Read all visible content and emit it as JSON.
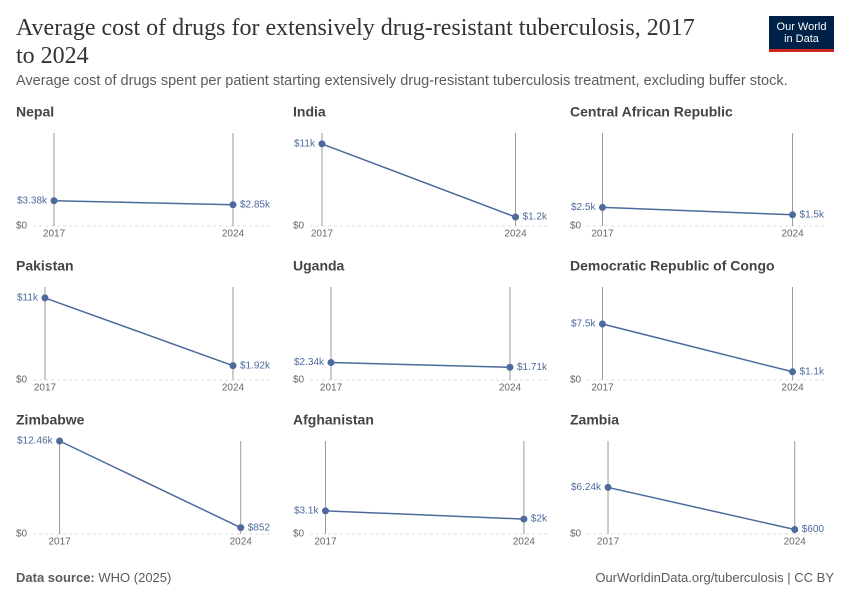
{
  "header": {
    "title": "Average cost of drugs for extensively drug-resistant tuberculosis, 2017 to 2024",
    "subtitle": "Average cost of drugs spent per patient starting extensively drug-resistant tuberculosis treatment, excluding buffer stock.",
    "logo": [
      "Our World",
      "in Data"
    ]
  },
  "chart_data": [
    {
      "type": "slope",
      "title": "Nepal",
      "x": [
        2017,
        2024
      ],
      "values": [
        3380,
        2850
      ],
      "value_labels": [
        "$3.38k",
        "$2.85k"
      ],
      "ylim": [
        0,
        12460
      ],
      "yticks": [
        {
          "value": 0,
          "label": "$0"
        }
      ],
      "color": "#4c6a9c"
    },
    {
      "type": "slope",
      "title": "India",
      "x": [
        2017,
        2024
      ],
      "values": [
        11000,
        1200
      ],
      "value_labels": [
        "$11k",
        "$1.2k"
      ],
      "ylim": [
        0,
        12460
      ],
      "yticks": [
        {
          "value": 0,
          "label": "$0"
        }
      ],
      "color": "#4c6a9c"
    },
    {
      "type": "slope",
      "title": "Central African Republic",
      "x": [
        2017,
        2024
      ],
      "values": [
        2500,
        1500
      ],
      "value_labels": [
        "$2.5k",
        "$1.5k"
      ],
      "ylim": [
        0,
        12460
      ],
      "yticks": [
        {
          "value": 0,
          "label": "$0"
        }
      ],
      "color": "#4c6a9c"
    },
    {
      "type": "slope",
      "title": "Pakistan",
      "x": [
        2017,
        2024
      ],
      "values": [
        11000,
        1920
      ],
      "value_labels": [
        "$11k",
        "$1.92k"
      ],
      "ylim": [
        0,
        12460
      ],
      "yticks": [
        {
          "value": 0,
          "label": "$0"
        }
      ],
      "color": "#4c6a9c"
    },
    {
      "type": "slope",
      "title": "Uganda",
      "x": [
        2017,
        2024
      ],
      "values": [
        2340,
        1710
      ],
      "value_labels": [
        "$2.34k",
        "$1.71k"
      ],
      "ylim": [
        0,
        12460
      ],
      "yticks": [
        {
          "value": 0,
          "label": "$0"
        }
      ],
      "color": "#4c6a9c"
    },
    {
      "type": "slope",
      "title": "Democratic Republic of Congo",
      "x": [
        2017,
        2024
      ],
      "values": [
        7500,
        1100
      ],
      "value_labels": [
        "$7.5k",
        "$1.1k"
      ],
      "ylim": [
        0,
        12460
      ],
      "yticks": [
        {
          "value": 0,
          "label": "$0"
        }
      ],
      "color": "#4c6a9c"
    },
    {
      "type": "slope",
      "title": "Zimbabwe",
      "x": [
        2017,
        2024
      ],
      "values": [
        12460,
        852
      ],
      "value_labels": [
        "$12.46k",
        "$852"
      ],
      "ylim": [
        0,
        12460
      ],
      "yticks": [
        {
          "value": 0,
          "label": "$0"
        }
      ],
      "color": "#4c6a9c"
    },
    {
      "type": "slope",
      "title": "Afghanistan",
      "x": [
        2017,
        2024
      ],
      "values": [
        3100,
        2000
      ],
      "value_labels": [
        "$3.1k",
        "$2k"
      ],
      "ylim": [
        0,
        12460
      ],
      "yticks": [
        {
          "value": 0,
          "label": "$0"
        }
      ],
      "color": "#4c6a9c"
    },
    {
      "type": "slope",
      "title": "Zambia",
      "x": [
        2017,
        2024
      ],
      "values": [
        6240,
        600
      ],
      "value_labels": [
        "$6.24k",
        "$600"
      ],
      "ylim": [
        0,
        12460
      ],
      "yticks": [
        {
          "value": 0,
          "label": "$0"
        }
      ],
      "color": "#4c6a9c"
    }
  ],
  "footer": {
    "source_label": "Data source:",
    "source": "WHO (2025)",
    "url": "OurWorldinData.org/tuberculosis | CC BY"
  }
}
